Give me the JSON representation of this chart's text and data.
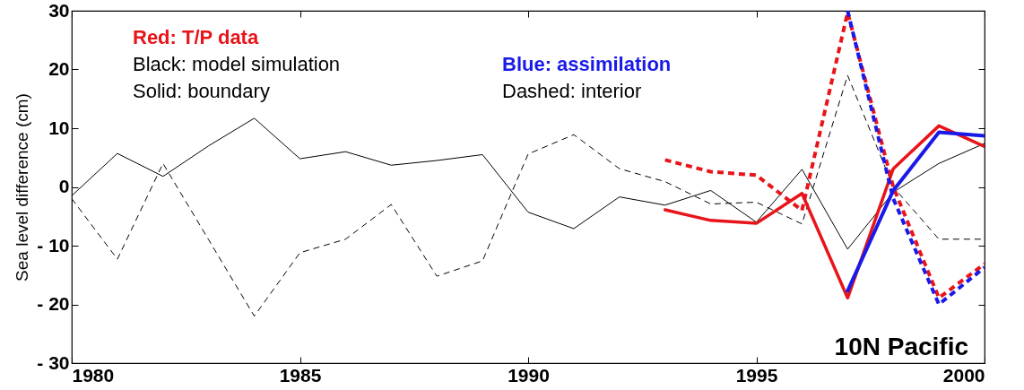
{
  "chart_data": {
    "type": "line",
    "ylabel": "Sea level difference (cm)",
    "xlim": [
      1980,
      2000
    ],
    "xticks": [
      1980,
      1985,
      1990,
      1995,
      2000
    ],
    "ylim": [
      -30,
      30
    ],
    "yticks": [
      {
        "value": -30,
        "label": "- 30"
      },
      {
        "value": -20,
        "label": "- 20"
      },
      {
        "value": -10,
        "label": "- 10"
      },
      0,
      10,
      20,
      30
    ],
    "grid": false,
    "annotations": [
      "Red: T/P data",
      "Black: model simulation",
      "Blue: assimilation",
      "Solid: boundary",
      "Dashed: interior",
      "10N Pacific"
    ],
    "series": [
      {
        "color": "#000000",
        "line_style": "solid",
        "x": [
          1980,
          1981,
          1982,
          1983,
          1984,
          1985,
          1986,
          1987,
          1988,
          1989,
          1990,
          1991,
          1992,
          1993,
          1994,
          1995,
          1996,
          1997,
          1998,
          1999,
          2000
        ],
        "values": [
          -1.5,
          5.7,
          1.8,
          7,
          11.7,
          4.8,
          6,
          3.7,
          4.5,
          5.5,
          -4.3,
          -7.1,
          -1.7,
          -3.1,
          -0.6,
          -6,
          3,
          -10.6,
          -0.9,
          4,
          7.4
        ]
      },
      {
        "color": "#000000",
        "line_style": "dashed",
        "x": [
          1980,
          1981,
          1982,
          1983,
          1984,
          1985,
          1986,
          1987,
          1988,
          1989,
          1990,
          1991,
          1992,
          1993,
          1994,
          1995,
          1996,
          1997,
          1998,
          1999,
          2000
        ],
        "values": [
          -2,
          -12.3,
          4,
          -9,
          -22,
          -11.2,
          -8.9,
          -3,
          -15.2,
          -12.6,
          5.6,
          8.9,
          3.1,
          0.9,
          -2.9,
          -2.6,
          -6.3,
          19,
          0,
          -8.9,
          -8.9
        ]
      },
      {
        "color": "#e8141a",
        "line_style": "solid",
        "x": [
          1993,
          1994,
          1995,
          1996,
          1997,
          1998,
          1999,
          2000
        ],
        "values": [
          -3.9,
          -5.7,
          -6.2,
          -1.1,
          -18.9,
          3.1,
          10.4,
          6.9
        ]
      },
      {
        "color": "#e8141a",
        "line_style": "dashed",
        "x": [
          1993,
          1994,
          1995,
          1996,
          1997,
          1998,
          1999,
          2000
        ],
        "values": [
          4.6,
          2.6,
          2,
          -4,
          29.7,
          0,
          -18.9,
          -13.1
        ]
      },
      {
        "color": "#1a1ae8",
        "line_style": "solid",
        "x": [
          1997,
          1998,
          1999,
          2000
        ],
        "values": [
          -17.7,
          -0.6,
          9.3,
          8.7
        ]
      },
      {
        "color": "#1a1ae8",
        "line_style": "dashed",
        "x": [
          1997,
          1998,
          1999,
          2000
        ],
        "values": [
          30,
          -2,
          -20,
          -13.7
        ]
      }
    ]
  }
}
